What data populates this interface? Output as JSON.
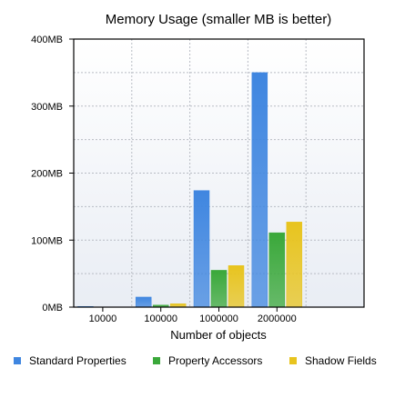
{
  "chart_data": {
    "type": "bar",
    "title": "Memory Usage (smaller MB is better)",
    "xlabel": "Number of objects",
    "ylabel": "",
    "categories": [
      "10000",
      "100000",
      "1000000",
      "2000000"
    ],
    "ylim": [
      0,
      400
    ],
    "y_ticks": [
      0,
      100,
      200,
      300,
      400
    ],
    "y_tick_labels": [
      "0MB",
      "100MB",
      "200MB",
      "300MB",
      "400MB"
    ],
    "grid": true,
    "legend_position": "bottom",
    "series": [
      {
        "name": "Standard Properties",
        "color": "#3f86e0",
        "values": [
          1,
          15,
          174,
          350
        ]
      },
      {
        "name": "Property Accessors",
        "color": "#3aa83a",
        "values": [
          0,
          3,
          55,
          111
        ]
      },
      {
        "name": "Shadow Fields",
        "color": "#e8c41e",
        "values": [
          0,
          5,
          62,
          127
        ]
      }
    ]
  }
}
